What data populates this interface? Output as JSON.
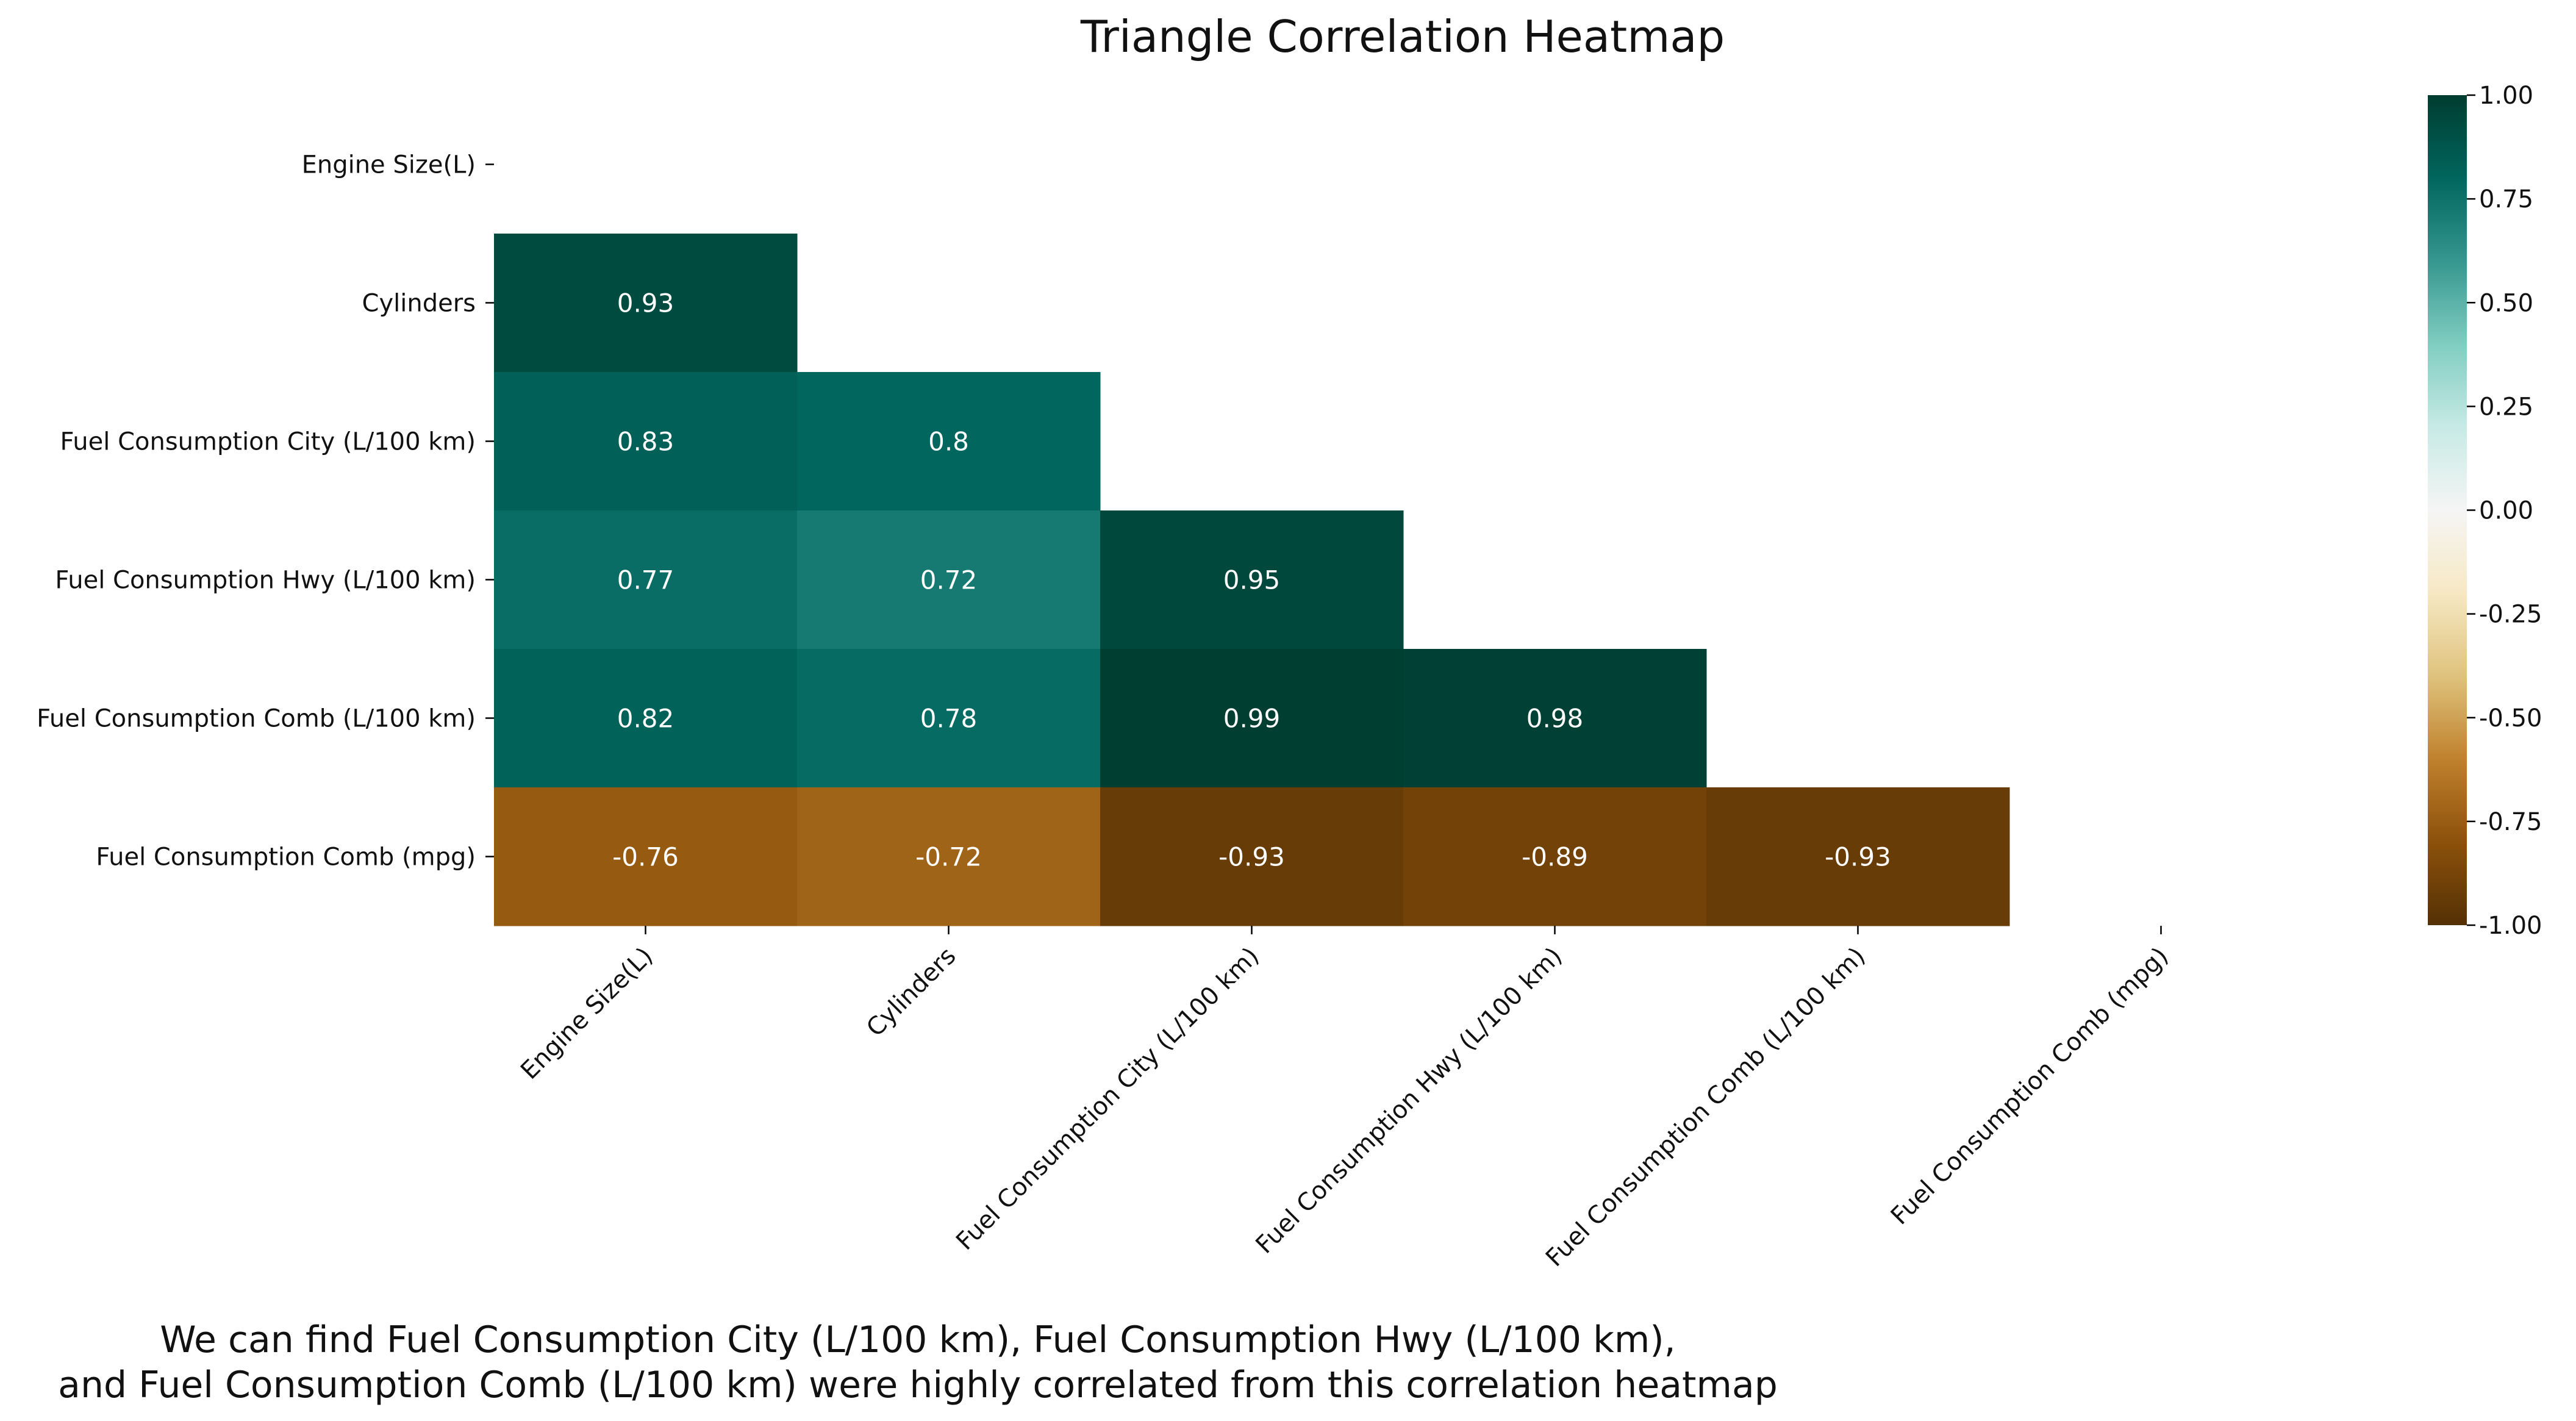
{
  "title": "Triangle Correlation Heatmap",
  "caption": {
    "line1": "We can find Fuel Consumption City (L/100 km), Fuel Consumption Hwy (L/100 km),",
    "line2": "and Fuel Consumption Comb (L/100 km) were highly correlated from this correlation heatmap"
  },
  "chart_data": {
    "type": "heatmap",
    "title": "Triangle Correlation Heatmap",
    "mask": "upper-triangle-including-diagonal",
    "rows": [
      "Engine Size(L)",
      "Cylinders",
      "Fuel Consumption City (L/100 km)",
      "Fuel Consumption Hwy (L/100 km)",
      "Fuel Consumption Comb (L/100 km)",
      "Fuel Consumption Comb (mpg)"
    ],
    "columns": [
      "Engine Size(L)",
      "Cylinders",
      "Fuel Consumption City (L/100 km)",
      "Fuel Consumption Hwy (L/100 km)",
      "Fuel Consumption Comb (L/100 km)",
      "Fuel Consumption Comb (mpg)"
    ],
    "values": [
      [
        null,
        null,
        null,
        null,
        null,
        null
      ],
      [
        0.93,
        null,
        null,
        null,
        null,
        null
      ],
      [
        0.83,
        0.8,
        null,
        null,
        null,
        null
      ],
      [
        0.77,
        0.72,
        0.95,
        null,
        null,
        null
      ],
      [
        0.82,
        0.78,
        0.99,
        0.98,
        null,
        null
      ],
      [
        -0.76,
        -0.72,
        -0.93,
        -0.89,
        -0.93,
        null
      ]
    ],
    "colormap": "BrBG",
    "colorbar": {
      "range": [
        -1.0,
        1.0
      ],
      "ticks": [
        "1.00",
        "0.75",
        "0.50",
        "0.25",
        "0.00",
        "-0.25",
        "-0.50",
        "-0.75",
        "-1.00"
      ],
      "tick_values": [
        1.0,
        0.75,
        0.5,
        0.25,
        0.0,
        -0.25,
        -0.5,
        -0.75,
        -1.0
      ]
    }
  }
}
